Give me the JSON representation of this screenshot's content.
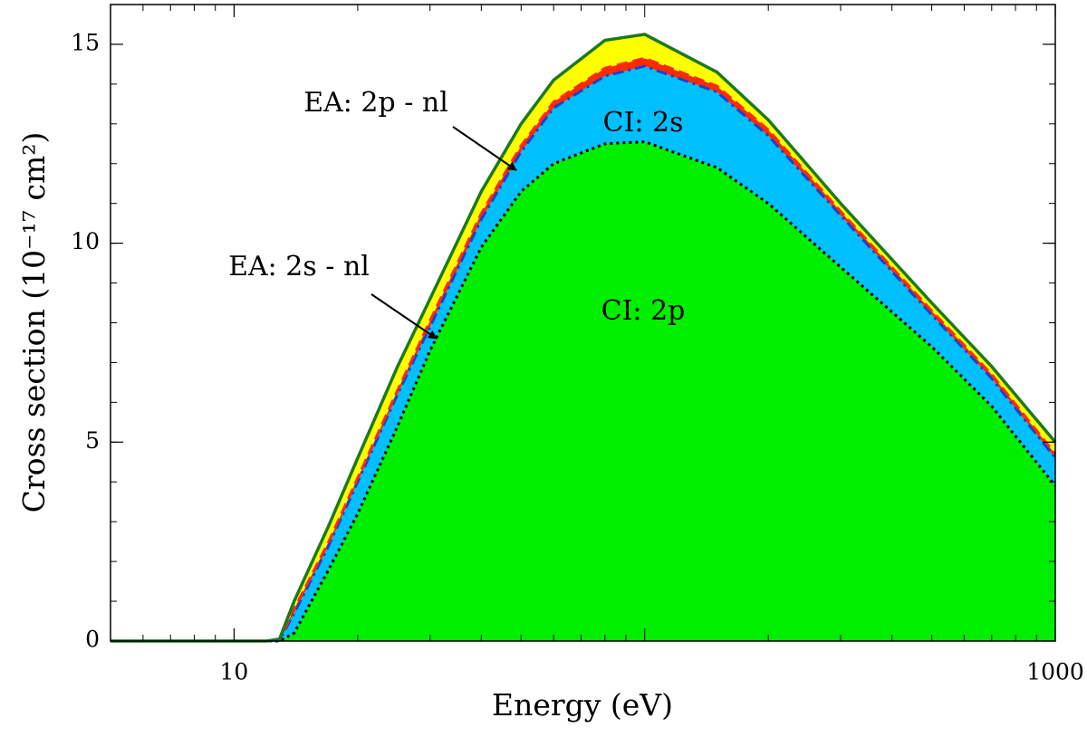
{
  "chart_data": {
    "type": "stacked_area",
    "x_label": "Energy (eV)",
    "y_label": "Cross section (10⁻¹⁷ cm²)",
    "x_scale": "log",
    "xlim": [
      5,
      1000
    ],
    "ylim": [
      0,
      16
    ],
    "xticks": [
      10,
      1000
    ],
    "yticks": [
      0,
      5,
      10,
      15
    ],
    "x": [
      5,
      12,
      12.9,
      14,
      17,
      20,
      25,
      30,
      40,
      50,
      60,
      80,
      100,
      150,
      200,
      300,
      500,
      700,
      1000
    ],
    "series": [
      {
        "name": "CI: 2p",
        "color": "#00ee00",
        "line_color": "#000000",
        "line_style": "dotted",
        "values": [
          0,
          0,
          0,
          0.2,
          1.8,
          3.2,
          5.4,
          7.3,
          9.9,
          11.3,
          12.0,
          12.5,
          12.55,
          11.9,
          11.0,
          9.4,
          7.4,
          5.9,
          3.9
        ]
      },
      {
        "name": "CI: 2s",
        "color": "#00bfff",
        "line_color": "#1f3fd0",
        "line_style": "dashdot",
        "values": [
          0,
          0,
          0.02,
          0.5,
          0.6,
          0.8,
          0.8,
          0.6,
          0.7,
          1.0,
          1.4,
          1.7,
          1.9,
          1.9,
          1.7,
          1.3,
          0.8,
          0.7,
          0.7
        ]
      },
      {
        "name": "EA: 2s - nl",
        "color": "#ff2a00",
        "line_color": "#ff2a00",
        "line_style": "dashed",
        "values": [
          0,
          0,
          0.01,
          0.1,
          0.1,
          0.1,
          0.1,
          0.15,
          0.15,
          0.15,
          0.15,
          0.2,
          0.2,
          0.15,
          0.15,
          0.1,
          0.1,
          0.1,
          0.1
        ]
      },
      {
        "name": "EA: 2p - nl",
        "color": "#ffff00",
        "line_color": "#1b7a1b",
        "line_style": "solid",
        "values": [
          0,
          0,
          0.02,
          0.2,
          0.4,
          0.5,
          0.6,
          0.55,
          0.55,
          0.55,
          0.55,
          0.7,
          0.6,
          0.35,
          0.25,
          0.2,
          0.2,
          0.2,
          0.3
        ]
      }
    ]
  }
}
